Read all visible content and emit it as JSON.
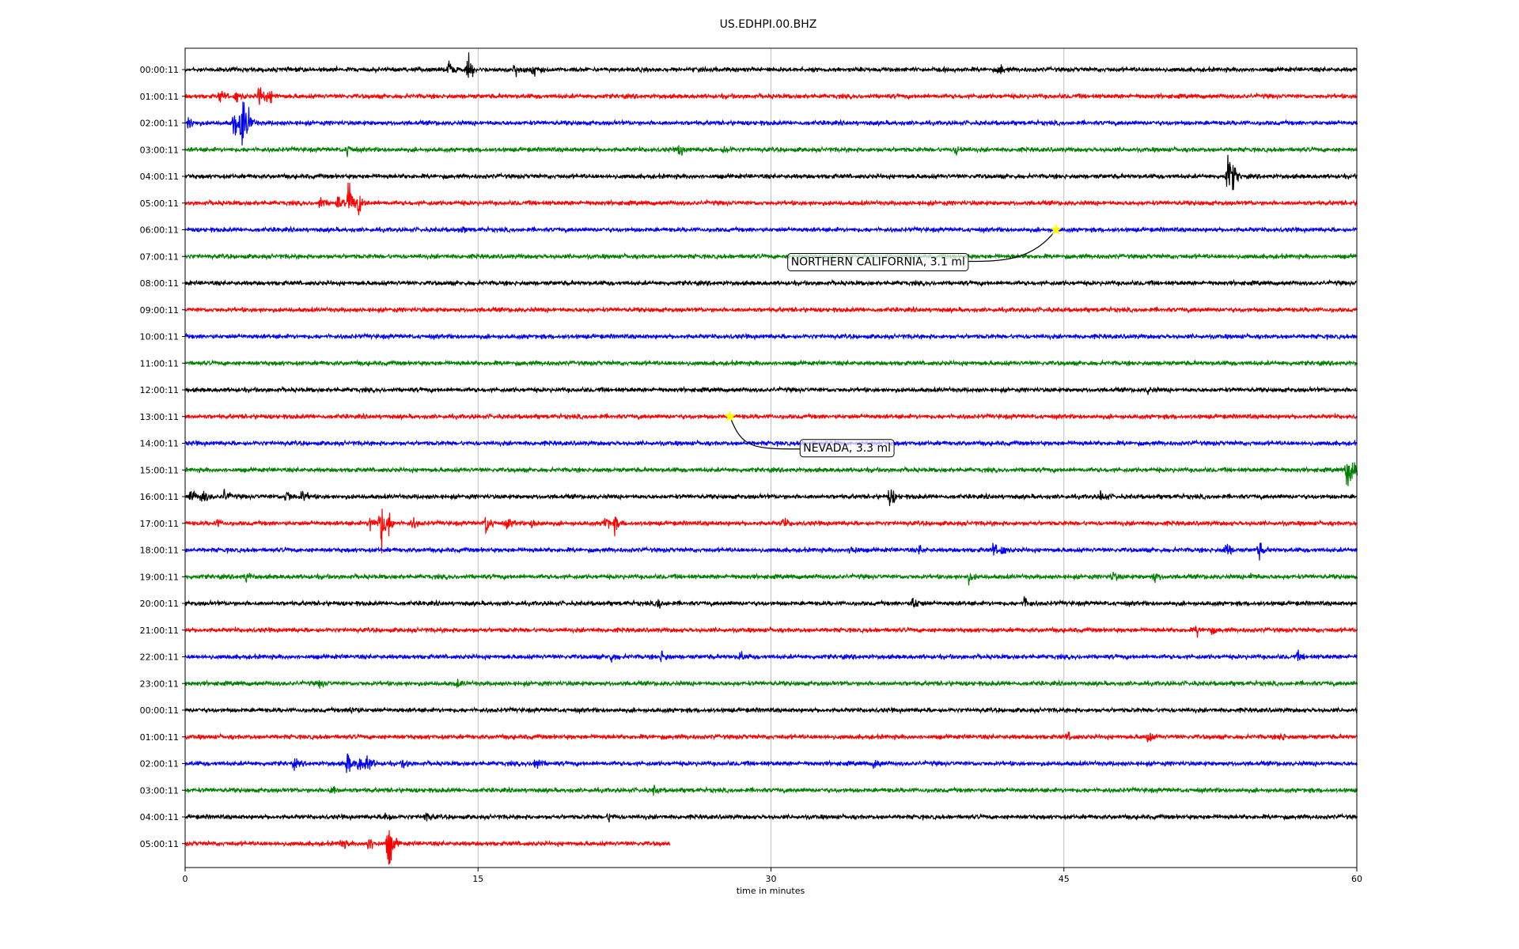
{
  "chart_data": {
    "type": "line",
    "title": "US.EDHPI.00.BHZ",
    "xlabel": "time in minutes",
    "xlim": [
      0,
      60
    ],
    "x_ticks": [
      "0",
      "15",
      "30",
      "45",
      "60"
    ],
    "x_tick_values": [
      0,
      15,
      30,
      45,
      60
    ],
    "grid": "vertical",
    "trace_colors": [
      "#000000",
      "#ff0000",
      "#0000ff",
      "#008000"
    ],
    "rows": [
      {
        "label": "00:00:11",
        "end_minute": 60,
        "events": [
          [
            13.5,
            0.7
          ],
          [
            14.5,
            1.0
          ],
          [
            16.9,
            0.5
          ],
          [
            17.8,
            0.7
          ],
          [
            41.7,
            0.5
          ]
        ]
      },
      {
        "label": "01:00:11",
        "end_minute": 60,
        "events": [
          [
            1.8,
            0.5
          ],
          [
            2.6,
            0.5
          ],
          [
            3.8,
            1.0
          ],
          [
            4.3,
            0.6
          ]
        ]
      },
      {
        "label": "02:00:11",
        "end_minute": 60,
        "events": [
          [
            0.2,
            0.6
          ],
          [
            2.5,
            1.3
          ],
          [
            2.9,
            2.7
          ],
          [
            3.2,
            0.7
          ]
        ]
      },
      {
        "label": "03:00:11",
        "end_minute": 60,
        "events": [
          [
            8.3,
            0.5
          ],
          [
            25.3,
            0.5
          ],
          [
            27.6,
            0.4
          ],
          [
            39.5,
            0.4
          ]
        ]
      },
      {
        "label": "04:00:11",
        "end_minute": 60,
        "events": [
          [
            53.4,
            2.0
          ],
          [
            53.7,
            0.6
          ]
        ]
      },
      {
        "label": "05:00:11",
        "end_minute": 60,
        "events": [
          [
            6.9,
            0.5
          ],
          [
            7.8,
            0.6
          ],
          [
            8.4,
            1.8
          ],
          [
            8.9,
            0.8
          ]
        ]
      },
      {
        "label": "06:00:11",
        "end_minute": 60,
        "events": [
          [
            14.1,
            0.3
          ]
        ]
      },
      {
        "label": "07:00:11",
        "end_minute": 60,
        "events": []
      },
      {
        "label": "08:00:11",
        "end_minute": 60,
        "events": []
      },
      {
        "label": "09:00:11",
        "end_minute": 60,
        "events": []
      },
      {
        "label": "10:00:11",
        "end_minute": 60,
        "events": []
      },
      {
        "label": "11:00:11",
        "end_minute": 60,
        "events": []
      },
      {
        "label": "12:00:11",
        "end_minute": 60,
        "events": [
          [
            49.3,
            0.3
          ]
        ]
      },
      {
        "label": "13:00:11",
        "end_minute": 60,
        "events": []
      },
      {
        "label": "14:00:11",
        "end_minute": 60,
        "events": []
      },
      {
        "label": "15:00:11",
        "end_minute": 60,
        "events": [
          [
            59.5,
            1.6
          ],
          [
            59.8,
            0.8
          ]
        ]
      },
      {
        "label": "16:00:11",
        "end_minute": 60,
        "events": [
          [
            0.3,
            0.6
          ],
          [
            0.9,
            0.6
          ],
          [
            2.0,
            0.5
          ],
          [
            5.2,
            0.5
          ],
          [
            6.0,
            0.5
          ],
          [
            36.1,
            0.9
          ],
          [
            46.9,
            0.5
          ]
        ]
      },
      {
        "label": "17:00:11",
        "end_minute": 60,
        "events": [
          [
            1.6,
            0.3
          ],
          [
            9.5,
            0.8
          ],
          [
            10.0,
            2.4
          ],
          [
            10.4,
            0.8
          ],
          [
            11.6,
            0.5
          ],
          [
            15.4,
            1.0
          ],
          [
            16.5,
            0.4
          ],
          [
            17.8,
            0.5
          ],
          [
            21.5,
            0.6
          ],
          [
            22.0,
            0.6
          ],
          [
            30.6,
            0.4
          ]
        ]
      },
      {
        "label": "18:00:11",
        "end_minute": 60,
        "events": [
          [
            34.1,
            0.5
          ],
          [
            37.6,
            0.3
          ],
          [
            41.4,
            0.5
          ],
          [
            41.8,
            0.4
          ],
          [
            53.3,
            0.7
          ],
          [
            55.0,
            0.7
          ]
        ]
      },
      {
        "label": "19:00:11",
        "end_minute": 60,
        "events": [
          [
            3.1,
            0.4
          ],
          [
            40.1,
            0.4
          ],
          [
            47.5,
            0.4
          ],
          [
            49.6,
            0.4
          ],
          [
            54.6,
            0.3
          ]
        ]
      },
      {
        "label": "20:00:11",
        "end_minute": 60,
        "events": [
          [
            24.2,
            0.4
          ],
          [
            37.3,
            0.6
          ],
          [
            43.0,
            0.6
          ]
        ]
      },
      {
        "label": "21:00:11",
        "end_minute": 60,
        "events": [
          [
            51.8,
            0.4
          ],
          [
            52.5,
            0.3
          ]
        ]
      },
      {
        "label": "22:00:11",
        "end_minute": 60,
        "events": [
          [
            21.8,
            0.4
          ],
          [
            24.4,
            0.5
          ],
          [
            28.4,
            0.4
          ],
          [
            57.0,
            0.3
          ]
        ]
      },
      {
        "label": "23:00:11",
        "end_minute": 60,
        "events": [
          [
            6.9,
            0.3
          ],
          [
            13.9,
            0.3
          ]
        ]
      },
      {
        "label": "00:00:11",
        "end_minute": 60,
        "events": [
          [
            8.5,
            0.4
          ]
        ]
      },
      {
        "label": "01:00:11",
        "end_minute": 60,
        "events": [
          [
            45.2,
            0.3
          ],
          [
            49.3,
            0.6
          ],
          [
            56.1,
            0.3
          ]
        ]
      },
      {
        "label": "02:00:11",
        "end_minute": 60,
        "events": [
          [
            5.6,
            0.3
          ],
          [
            8.3,
            0.9
          ],
          [
            8.9,
            0.8
          ],
          [
            9.3,
            0.8
          ],
          [
            11.2,
            0.4
          ],
          [
            17.9,
            0.7
          ],
          [
            35.3,
            0.4
          ]
        ]
      },
      {
        "label": "03:00:11",
        "end_minute": 60,
        "events": [
          [
            7.5,
            0.4
          ],
          [
            24.0,
            0.3
          ]
        ]
      },
      {
        "label": "04:00:11",
        "end_minute": 60,
        "events": [
          [
            10.3,
            0.6
          ],
          [
            12.3,
            0.4
          ],
          [
            21.7,
            0.3
          ]
        ]
      },
      {
        "label": "05:00:11",
        "end_minute": 24.8,
        "events": [
          [
            8.0,
            0.5
          ],
          [
            9.4,
            0.7
          ],
          [
            10.4,
            2.3
          ]
        ]
      }
    ],
    "annotations": [
      {
        "text": "NORTHERN CALIFORNIA, 3.1 ml",
        "row": 6,
        "minute": 44.6,
        "marker_color": "#ffff00"
      },
      {
        "text": "NEVADA, 3.3 ml",
        "row": 13,
        "minute": 27.9,
        "marker_color": "#ffff00"
      }
    ]
  }
}
